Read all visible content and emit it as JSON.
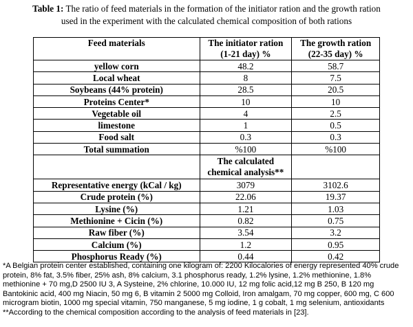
{
  "caption": {
    "label": "Table 1:",
    "line1": " The ratio of feed materials in the formation of the initiator ration and the growth ration",
    "line2": "used in the experiment with the calculated chemical composition of both rations"
  },
  "headers": {
    "col1": "Feed materials",
    "col2_a": "The initiator ration",
    "col2_b": "(1-21 day) %",
    "col3_a": "The growth ration",
    "col3_b": "(22-35 day) %"
  },
  "feed_rows": [
    {
      "name": "yellow corn",
      "initiator": "48.2",
      "growth": "58.7"
    },
    {
      "name": "Local wheat",
      "initiator": "8",
      "growth": "7.5"
    },
    {
      "name": "Soybeans (44% protein)",
      "initiator": "28.5",
      "growth": "20.5"
    },
    {
      "name": "Proteins Center*",
      "initiator": "10",
      "growth": "10"
    },
    {
      "name": "Vegetable oil",
      "initiator": "4",
      "growth": "2.5"
    },
    {
      "name": "limestone",
      "initiator": "1",
      "growth": "0.5"
    },
    {
      "name": "Food salt",
      "initiator": "0.3",
      "growth": "0.3"
    },
    {
      "name": "Total summation",
      "initiator": "%100",
      "growth": "%100"
    }
  ],
  "calc_header": {
    "line1": "The calculated",
    "line2": "chemical analysis**"
  },
  "chem_rows": [
    {
      "name": "Representative energy (kCal / kg)",
      "initiator": "3079",
      "growth": "3102.6"
    },
    {
      "name": "Crude protein (%)",
      "initiator": "22.06",
      "growth": "19.37"
    },
    {
      "name": "Lysine (%)",
      "initiator": "1.21",
      "growth": "1.03"
    },
    {
      "name": "Methionine + Cicin (%)",
      "initiator": "0.82",
      "growth": "0.75"
    },
    {
      "name": "Raw fiber (%)",
      "initiator": "3.54",
      "growth": "3.2"
    },
    {
      "name": "Calcium (%)",
      "initiator": "1.2",
      "growth": "0.95"
    },
    {
      "name": "Phosphorus Ready (%)",
      "initiator": "0.44",
      "growth": "0.42"
    }
  ],
  "notes": {
    "footnote1": "*A Belgian protein center established, containing one kilogram of: 2200 Kilocalories of energy represented 40% crude protein, 8% fat, 3.5% fiber, 25% ash, 8% calcium, 3.1 phosphorus ready, 1.2% lysine, 1.2% methionine, 1.8% methionine + 70 mg,D 2500 IU 3, A Systeine, 2% chlorine, 10.000 IU, 12 mg folic acid,12 mg B 250, B 120 mg Bantokinic acid, 400 mg Niacin, 50 mg 6, B vitamin 2 5000 mg Colloid, Iron amalgam, 70 mg copper, 600 mg, C 600 microgram biotin, 1000 mg special vitamin, 750 manganese, 5 mg iodine, 1 g cobalt, 1 mg selenium, antioxidants",
    "footnote2": "**According to the chemical composition according to the analysis of feed materials in [23]."
  }
}
